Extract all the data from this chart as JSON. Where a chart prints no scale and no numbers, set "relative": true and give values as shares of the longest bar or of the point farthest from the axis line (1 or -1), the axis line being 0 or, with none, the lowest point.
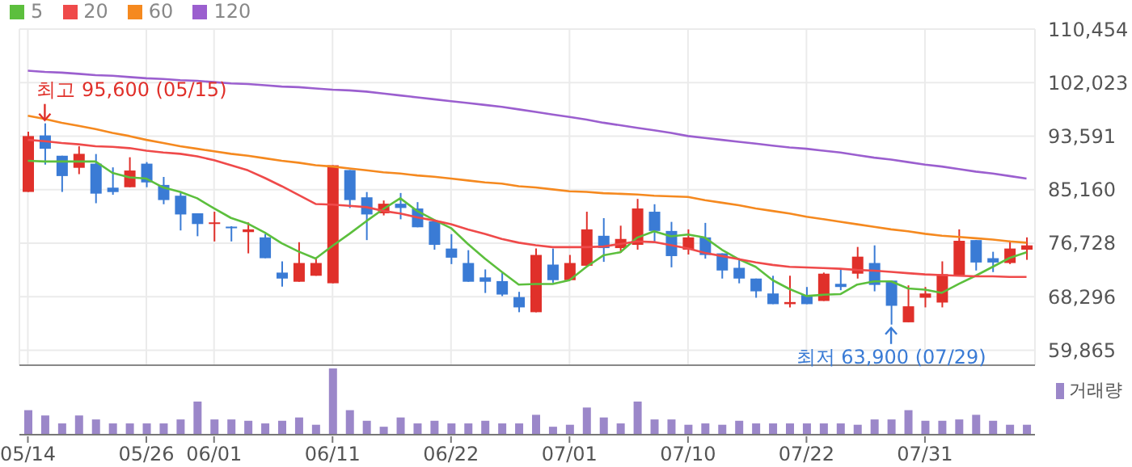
{
  "chart_data": [
    {
      "type": "candlestick",
      "categories": [
        "05/14",
        null,
        null,
        null,
        null,
        null,
        null,
        "05/26",
        null,
        null,
        null,
        "06/01",
        null,
        null,
        null,
        null,
        null,
        null,
        "06/11",
        null,
        null,
        null,
        null,
        null,
        null,
        "06/22",
        null,
        null,
        null,
        null,
        null,
        null,
        "07/01",
        null,
        null,
        null,
        null,
        null,
        null,
        "07/10",
        null,
        null,
        null,
        null,
        null,
        null,
        "07/22",
        null,
        null,
        null,
        null,
        null,
        null,
        "07/31",
        null,
        null,
        null,
        null,
        null,
        null
      ],
      "ohlc": [
        [
          84800,
          94300,
          84800,
          93600
        ],
        [
          93700,
          95600,
          89100,
          91600
        ],
        [
          90500,
          90500,
          84800,
          87300
        ],
        [
          88600,
          92000,
          87600,
          90800
        ],
        [
          89250,
          90770,
          83020,
          84530
        ],
        [
          85470,
          88670,
          84350,
          84780
        ],
        [
          85540,
          90260,
          85540,
          88170
        ],
        [
          89250,
          89500,
          85540,
          86300
        ],
        [
          85900,
          87160,
          82860,
          83520
        ],
        [
          84200,
          84700,
          78730,
          81250
        ],
        [
          81430,
          81430,
          77820,
          79740
        ],
        [
          79800,
          81680,
          77000,
          80000
        ],
        [
          79330,
          79400,
          77000,
          79160
        ],
        [
          78470,
          80000,
          75120,
          78900
        ],
        [
          77640,
          78150,
          74360,
          74360
        ],
        [
          72090,
          73860,
          69890,
          71150
        ],
        [
          70650,
          76880,
          70650,
          73600
        ],
        [
          71590,
          74290,
          71590,
          73600
        ],
        [
          70410,
          89000,
          70410,
          89000
        ],
        [
          88240,
          88240,
          82270,
          83520
        ],
        [
          83950,
          84780,
          77210,
          81250
        ],
        [
          81430,
          83450,
          81100,
          82940
        ],
        [
          82940,
          84630,
          80490,
          82270
        ],
        [
          82190,
          83190,
          79230,
          79230
        ],
        [
          80170,
          80170,
          75700,
          76460
        ],
        [
          75880,
          78150,
          73430,
          74440
        ],
        [
          73600,
          75620,
          70650,
          70650
        ],
        [
          71330,
          72590,
          68880,
          70650
        ],
        [
          70750,
          72090,
          68380,
          68630
        ],
        [
          68230,
          69060,
          65850,
          66610
        ],
        [
          65850,
          75880,
          65850,
          74870
        ],
        [
          73350,
          75880,
          70500,
          70900
        ],
        [
          70900,
          74870,
          70900,
          73600
        ],
        [
          73170,
          81680,
          73170,
          78900
        ],
        [
          77890,
          80670,
          73780,
          75950
        ],
        [
          75950,
          79480,
          75190,
          77390
        ],
        [
          76460,
          83700,
          75700,
          82190
        ],
        [
          81680,
          82860,
          77000,
          78650
        ],
        [
          78650,
          80080,
          72920,
          74690
        ],
        [
          75700,
          78900,
          74940,
          77640
        ],
        [
          77640,
          79920,
          74290,
          74860
        ],
        [
          75120,
          75120,
          71150,
          72420
        ],
        [
          72840,
          74290,
          70400,
          71150
        ],
        [
          71150,
          71150,
          68130,
          69140
        ],
        [
          68800,
          71590,
          67120,
          67120
        ],
        [
          67120,
          71590,
          66610,
          67450
        ],
        [
          68550,
          69820,
          67120,
          67120
        ],
        [
          67620,
          72090,
          67620,
          71920
        ],
        [
          70320,
          72590,
          69310,
          69820
        ],
        [
          71920,
          76130,
          71150,
          74600
        ],
        [
          73600,
          76380,
          69140,
          70150
        ],
        [
          70830,
          70830,
          63900,
          66860
        ],
        [
          64260,
          70080,
          64260,
          66780
        ],
        [
          68130,
          69820,
          66610,
          68800
        ],
        [
          67370,
          73860,
          66610,
          71840
        ],
        [
          71670,
          78900,
          71670,
          77100
        ],
        [
          77210,
          77210,
          72420,
          73680
        ],
        [
          74360,
          75370,
          72170,
          73680
        ],
        [
          73600,
          77130,
          73430,
          75880
        ],
        [
          75700,
          77640,
          74100,
          76380
        ]
      ],
      "series": [
        {
          "name": "5",
          "type": "line",
          "color": "#5cbf3d",
          "values": [
            89700,
            89600,
            89600,
            89600,
            89600,
            87800,
            87100,
            86900,
            85500,
            84800,
            83800,
            82200,
            80700,
            79800,
            78400,
            76700,
            75400,
            74300,
            76300,
            78200,
            80200,
            82100,
            83800,
            81800,
            80400,
            79100,
            76600,
            74300,
            72200,
            70200,
            70300,
            70300,
            70900,
            73000,
            74800,
            75300,
            77600,
            78600,
            77800,
            78100,
            77600,
            75700,
            74200,
            73000,
            70900,
            69500,
            68400,
            68600,
            68700,
            70200,
            70700,
            70700,
            69600,
            69400,
            68900,
            70300,
            71600,
            73000,
            74400,
            75300
          ]
        },
        {
          "name": "20",
          "type": "line",
          "color": "#ef4a4a",
          "values": [
            93000,
            92800,
            92500,
            92300,
            92000,
            91900,
            91700,
            91300,
            91000,
            90800,
            90400,
            89800,
            89000,
            88200,
            87000,
            85700,
            84300,
            82900,
            82800,
            82600,
            82400,
            81800,
            81400,
            80800,
            80300,
            79700,
            78900,
            78200,
            77400,
            76800,
            76400,
            76100,
            76100,
            76100,
            76200,
            76600,
            77000,
            76900,
            76400,
            75900,
            75200,
            74700,
            74200,
            73700,
            73300,
            73000,
            72900,
            72800,
            72700,
            72500,
            72400,
            72200,
            72000,
            71800,
            71700,
            71600,
            71500,
            71500,
            71400,
            71400
          ]
        },
        {
          "name": "60",
          "type": "line",
          "color": "#f5891f",
          "values": [
            96800,
            96300,
            95700,
            95200,
            94700,
            94100,
            93600,
            93000,
            92500,
            92000,
            91600,
            91200,
            90800,
            90500,
            90100,
            89700,
            89400,
            89000,
            88800,
            88500,
            88200,
            87900,
            87700,
            87400,
            87200,
            86900,
            86600,
            86300,
            86100,
            85700,
            85500,
            85200,
            84900,
            84800,
            84600,
            84500,
            84400,
            84200,
            84100,
            84000,
            83500,
            83100,
            82700,
            82200,
            81800,
            81400,
            80900,
            80500,
            80100,
            79700,
            79300,
            78900,
            78600,
            78200,
            77900,
            77700,
            77500,
            77300,
            77000,
            76800
          ]
        },
        {
          "name": "120",
          "type": "line",
          "color": "#9b5fcf",
          "values": [
            103900,
            103700,
            103600,
            103400,
            103200,
            103100,
            102900,
            102700,
            102600,
            102400,
            102300,
            102100,
            101900,
            101800,
            101600,
            101400,
            101300,
            101100,
            100900,
            100800,
            100600,
            100300,
            100000,
            99700,
            99400,
            99100,
            98800,
            98500,
            98200,
            97800,
            97400,
            97000,
            96600,
            96200,
            95700,
            95300,
            94900,
            94500,
            94100,
            93600,
            93300,
            93000,
            92700,
            92400,
            92100,
            91800,
            91600,
            91300,
            91000,
            90600,
            90200,
            89900,
            89500,
            89100,
            88800,
            88400,
            88000,
            87700,
            87300,
            86900
          ]
        }
      ],
      "ylim": [
        57500,
        110454
      ],
      "yticks": [
        {
          "value": 59865,
          "label": "59,865"
        },
        {
          "value": 68296,
          "label": "68,296"
        },
        {
          "value": 76728,
          "label": "76,728"
        },
        {
          "value": 85160,
          "label": "85,160"
        },
        {
          "value": 93591,
          "label": "93,591"
        },
        {
          "value": 102023,
          "label": "102,023"
        },
        {
          "value": 110454,
          "label": "110,454"
        }
      ],
      "grid": true,
      "legend": "top left",
      "marker": "none",
      "annotations": [
        "최고 95,600 (05/15)",
        "최저 63,900 (07/29)"
      ]
    },
    {
      "type": "bar",
      "relative": true,
      "legend": "top right",
      "grid": false,
      "categories": [
        null,
        null,
        null,
        null,
        null,
        null,
        null,
        null,
        null,
        null,
        null,
        null,
        null,
        null,
        null,
        null,
        null,
        null,
        null,
        null,
        null,
        null,
        null,
        null,
        null,
        null,
        null,
        null,
        null,
        null,
        null,
        null,
        null,
        null,
        null,
        null,
        null,
        null,
        null,
        null,
        null,
        null,
        null,
        null,
        null,
        null,
        null,
        null,
        null,
        null,
        null,
        null,
        null,
        null,
        null,
        null,
        null,
        null,
        null,
        null
      ],
      "series": [
        {
          "name": "거래량",
          "color": "#9b87c9",
          "values": [
            0.37,
            0.29,
            0.17,
            0.29,
            0.23,
            0.17,
            0.17,
            0.17,
            0.17,
            0.23,
            0.5,
            0.23,
            0.23,
            0.21,
            0.17,
            0.21,
            0.26,
            0.15,
            1,
            0.37,
            0.21,
            0.12,
            0.26,
            0.17,
            0.21,
            0.17,
            0.17,
            0.21,
            0.17,
            0.17,
            0.3,
            0.12,
            0.15,
            0.41,
            0.26,
            0.17,
            0.5,
            0.23,
            0.23,
            0.15,
            0.17,
            0.15,
            0.21,
            0.17,
            0.17,
            0.17,
            0.17,
            0.17,
            0.17,
            0.15,
            0.23,
            0.23,
            0.37,
            0.21,
            0.21,
            0.23,
            0.3,
            0.21,
            0.15,
            0.15
          ]
        }
      ]
    }
  ]
}
